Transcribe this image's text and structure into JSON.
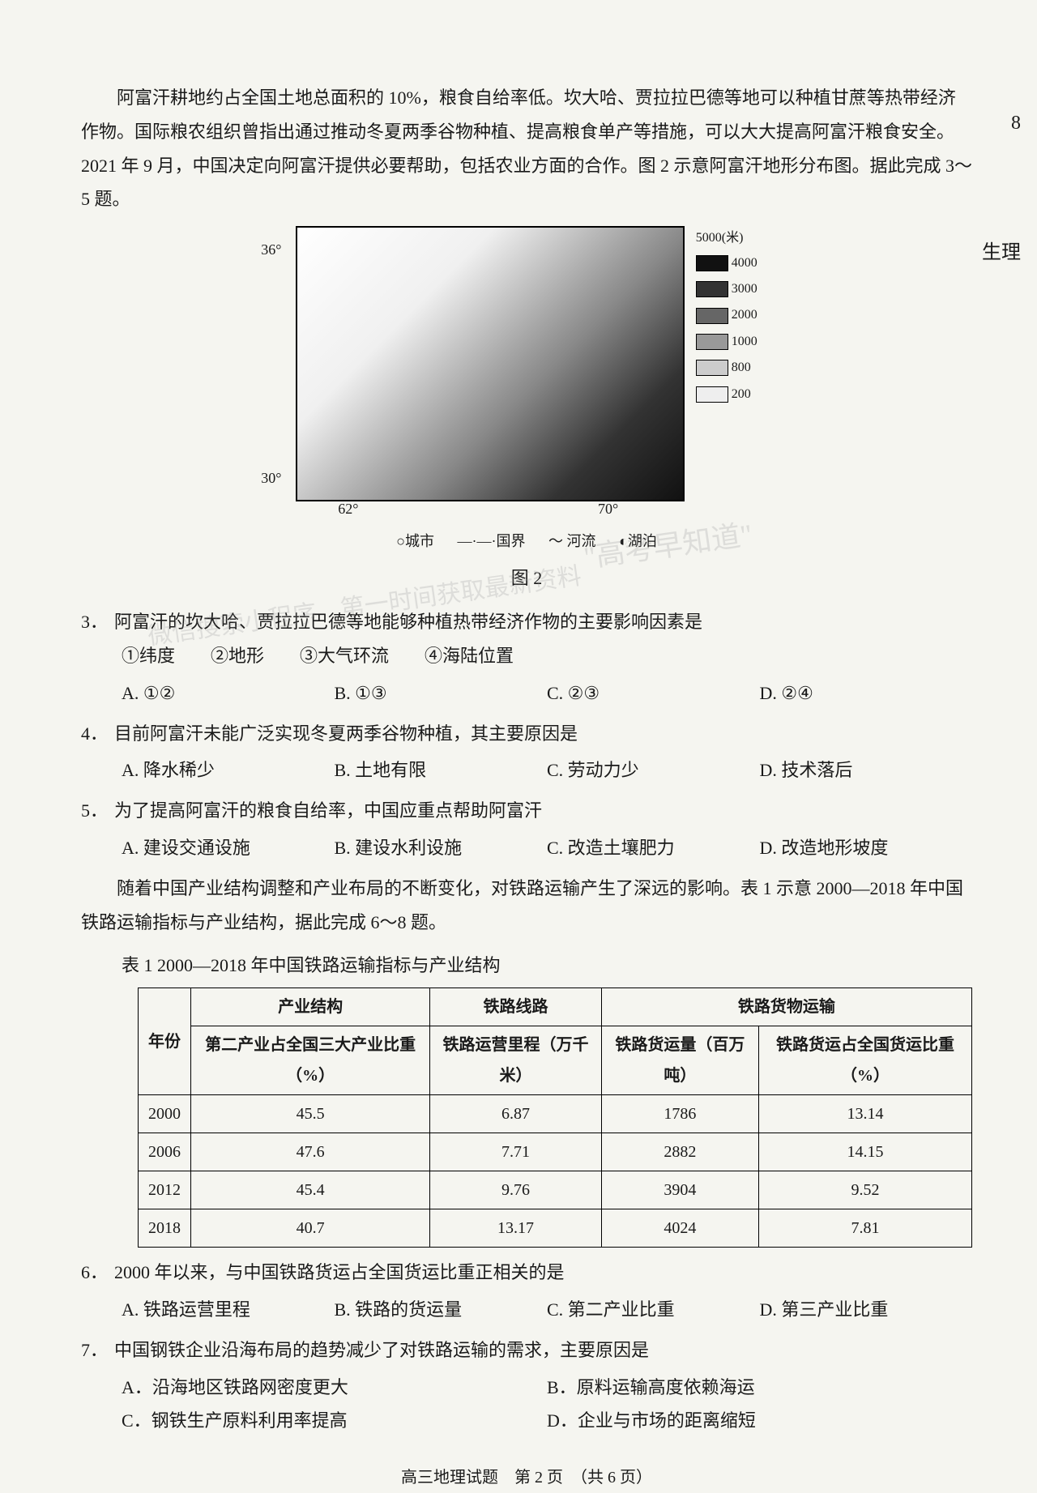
{
  "intro": "阿富汗耕地约占全国土地总面积的 10%，粮食自给率低。坎大哈、贾拉拉巴德等地可以种植甘蔗等热带经济作物。国际粮农组织曾指出通过推动冬夏两季谷物种植、提高粮食单产等措施，可以大大提高阿富汗粮食安全。2021 年 9 月，中国决定向阿富汗提供必要帮助，包括农业方面的合作。图 2 示意阿富汗地形分布图。据此完成 3～5 题。",
  "map": {
    "lat_top": "36°",
    "lat_bottom": "30°",
    "lon_left": "62°",
    "lon_right": "70°",
    "legend_unit": "5000(米)",
    "legend_values": [
      "4000",
      "3000",
      "2000",
      "1000",
      "800",
      "200"
    ],
    "legend_colors": [
      "#111111",
      "#333333",
      "#666666",
      "#999999",
      "#cccccc",
      "#eeeeee",
      "#ffffff"
    ],
    "symbols": {
      "city": "○城市",
      "border": "―·―·国界",
      "river": "～ 河流",
      "lake": "◐湖泊"
    },
    "caption": "图 2"
  },
  "q3": {
    "num": "3．",
    "stem": "阿富汗的坎大哈、贾拉拉巴德等地能够种植热带经济作物的主要影响因素是",
    "factors": "①纬度　　②地形　　③大气环流　　④海陆位置",
    "A": "A. ①②",
    "B": "B. ①③",
    "C": "C. ②③",
    "D": "D. ②④"
  },
  "q4": {
    "num": "4．",
    "stem": "目前阿富汗未能广泛实现冬夏两季谷物种植，其主要原因是",
    "A": "A. 降水稀少",
    "B": "B. 土地有限",
    "C": "C. 劳动力少",
    "D": "D. 技术落后"
  },
  "q5": {
    "num": "5．",
    "stem": "为了提高阿富汗的粮食自给率，中国应重点帮助阿富汗",
    "A": "A. 建设交通设施",
    "B": "B. 建设水利设施",
    "C": "C. 改造土壤肥力",
    "D": "D. 改造地形坡度"
  },
  "intro2": "随着中国产业结构调整和产业布局的不断变化，对铁路运输产生了深远的影响。表 1 示意 2000—2018 年中国铁路运输指标与产业结构，据此完成 6～8 题。",
  "table": {
    "caption": "表 1  2000—2018 年中国铁路运输指标与产业结构",
    "header_group": [
      "产业结构",
      "铁路线路",
      "铁路货物运输"
    ],
    "year_label": "年份",
    "columns": [
      "第二产业占全国三大产业比重（%）",
      "铁路运营里程（万千米）",
      "铁路货运量（百万吨）",
      "铁路货运占全国货运比重（%）"
    ],
    "rows": [
      [
        "2000",
        "45.5",
        "6.87",
        "1786",
        "13.14"
      ],
      [
        "2006",
        "47.6",
        "7.71",
        "2882",
        "14.15"
      ],
      [
        "2012",
        "45.4",
        "9.76",
        "3904",
        "9.52"
      ],
      [
        "2018",
        "40.7",
        "13.17",
        "4024",
        "7.81"
      ]
    ]
  },
  "q6": {
    "num": "6．",
    "stem": "2000 年以来，与中国铁路货运占全国货运比重正相关的是",
    "A": "A. 铁路运营里程",
    "B": "B. 铁路的货运量",
    "C": "C. 第二产业比重",
    "D": "D. 第三产业比重"
  },
  "q7": {
    "num": "7．",
    "stem": "中国钢铁企业沿海布局的趋势减少了对铁路运输的需求，主要原因是",
    "A": "A．沿海地区铁路网密度更大",
    "B": "B．原料运输高度依赖海运",
    "C": "C．钢铁生产原料利用率提高",
    "D": "D．企业与市场的距离缩短"
  },
  "footer": "高三地理试题　第 2 页　（共 6 页）",
  "margin_note_1": "8",
  "margin_note_2": "生理",
  "watermark1": "\"高考早知道\"",
  "watermark2": "微信搜索小程序　第一时间获取最新资料"
}
